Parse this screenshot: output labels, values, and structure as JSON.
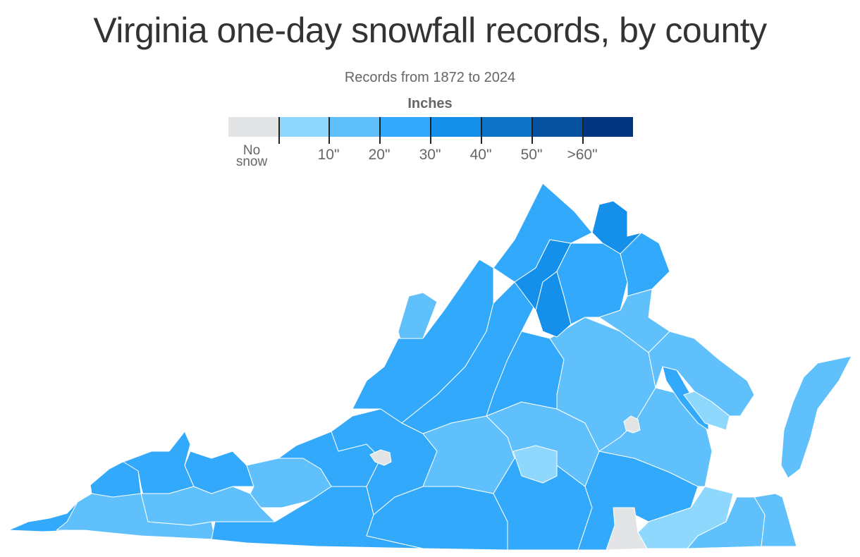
{
  "title": "Virginia one-day snowfall records, by county",
  "subtitle": "Records from 1872 to 2024",
  "legend": {
    "title": "Inches",
    "bins": [
      {
        "label": "No snow",
        "color": "#e3e4e6"
      },
      {
        "label": "0-10\"",
        "color": "#8fd8fd"
      },
      {
        "label": "10-20\"",
        "color": "#5fc0fc"
      },
      {
        "label": "20-30\"",
        "color": "#33a9fb"
      },
      {
        "label": "30-40\"",
        "color": "#1490eb"
      },
      {
        "label": "40-50\"",
        "color": "#0f74c8"
      },
      {
        "label": "50-60\"",
        "color": "#0752a0"
      },
      {
        "label": ">60\"",
        "color": "#03357e"
      }
    ],
    "ticks": [
      "10\"",
      "20\"",
      "30\"",
      "40\"",
      "50\"",
      ">60\""
    ],
    "no_snow_line1": "No",
    "no_snow_line2": "snow"
  },
  "map": {
    "regions": [
      {
        "name": "southwest-far-west",
        "bin": 3
      },
      {
        "name": "southwest-lee-scott",
        "bin": 2
      },
      {
        "name": "southwest-wise",
        "bin": 3
      },
      {
        "name": "southwest-dickenson-buchanan",
        "bin": 3
      },
      {
        "name": "southwest-russell-washington",
        "bin": 2
      },
      {
        "name": "southwest-tazewell-smyth",
        "bin": 2
      },
      {
        "name": "southwest-bland-giles",
        "bin": 3
      },
      {
        "name": "southwest-grayson-carroll",
        "bin": 3
      },
      {
        "name": "southside-patrick-henry",
        "bin": 3
      },
      {
        "name": "roanoke-area",
        "bin": 3
      },
      {
        "name": "roanoke-city",
        "bin": 0
      },
      {
        "name": "bedford-franklin",
        "bin": 2
      },
      {
        "name": "pittsylvania-halifax",
        "bin": 3
      },
      {
        "name": "campbell-appomattox",
        "bin": 2
      },
      {
        "name": "charlotte",
        "bin": 1
      },
      {
        "name": "mecklenburg-brunswick",
        "bin": 3
      },
      {
        "name": "greensville-emporia",
        "bin": 0
      },
      {
        "name": "southampton-isle-of-wight",
        "bin": 1
      },
      {
        "name": "suffolk-chesapeake",
        "bin": 2
      },
      {
        "name": "virginia-beach",
        "bin": 2
      },
      {
        "name": "highland-bath",
        "bin": 2
      },
      {
        "name": "shenandoah-valley-west",
        "bin": 3
      },
      {
        "name": "rockingham-augusta",
        "bin": 3
      },
      {
        "name": "albemarle-nelson",
        "bin": 3
      },
      {
        "name": "central-piedmont",
        "bin": 2
      },
      {
        "name": "richmond-area",
        "bin": 2
      },
      {
        "name": "richmond-city",
        "bin": 0
      },
      {
        "name": "northern-neck",
        "bin": 2
      },
      {
        "name": "middle-peninsula",
        "bin": 1
      },
      {
        "name": "king-and-queen",
        "bin": 3
      },
      {
        "name": "frederick-clarke",
        "bin": 3
      },
      {
        "name": "loudoun",
        "bin": 4
      },
      {
        "name": "fauquier",
        "bin": 3
      },
      {
        "name": "fairfax-prince-william",
        "bin": 3
      },
      {
        "name": "page-warren",
        "bin": 4
      },
      {
        "name": "madison-greene",
        "bin": 4
      },
      {
        "name": "stafford-spotsylvania",
        "bin": 2
      },
      {
        "name": "eastern-shore",
        "bin": 2
      }
    ]
  }
}
